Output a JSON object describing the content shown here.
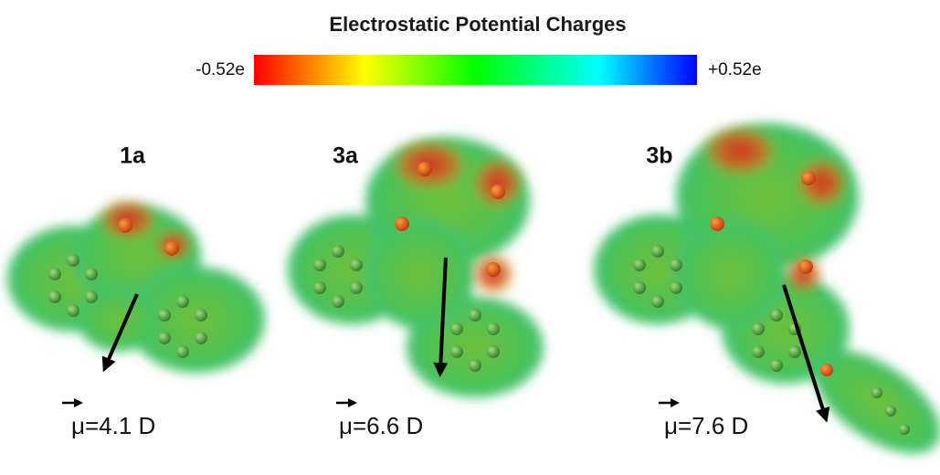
{
  "title": "Electrostatic Potential Charges",
  "colorbar": {
    "min_label": "-0.52e",
    "max_label": "+0.52e"
  },
  "molecules": [
    {
      "label": "1a",
      "dipole": "μ=4.1 D"
    },
    {
      "label": "3a",
      "dipole": "μ=6.6 D"
    },
    {
      "label": "3b",
      "dipole": "μ=7.6 D"
    }
  ]
}
